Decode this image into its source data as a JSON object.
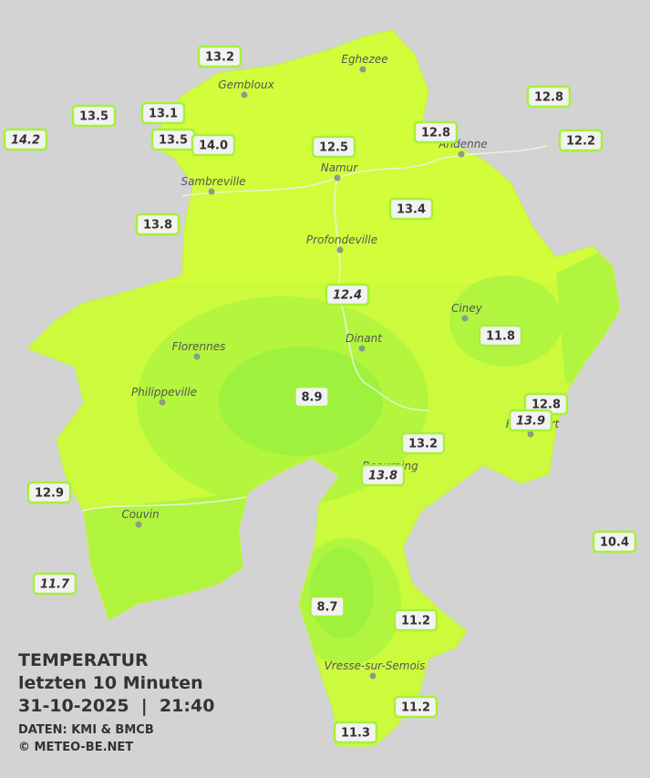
{
  "title": {
    "line1": "TEMPERATUR",
    "line2": "letzten 10 Minuten",
    "line3": "31-10-2025  |  21:40",
    "source": "DATEN: KMI & BMCB",
    "copyright": "© METEO-BE.NET"
  },
  "towns": [
    "Eghezee",
    "Gembloux",
    "Andenne",
    "Namur",
    "Sambreville",
    "Profondeville",
    "Ciney",
    "Dinant",
    "Florennes",
    "Philippeville",
    "Rochefort",
    "Beauraing",
    "Couvin",
    "Vresse-sur-Semois"
  ],
  "stations": [
    {
      "value": "13.2"
    },
    {
      "value": "13.5"
    },
    {
      "value": "13.1"
    },
    {
      "value": "14.2"
    },
    {
      "value": "13.5"
    },
    {
      "value": "14.0"
    },
    {
      "value": "12.5"
    },
    {
      "value": "12.8"
    },
    {
      "value": "12.8"
    },
    {
      "value": "12.2"
    },
    {
      "value": "13.8"
    },
    {
      "value": "13.4"
    },
    {
      "value": "12.4"
    },
    {
      "value": "11.8"
    },
    {
      "value": "8.9"
    },
    {
      "value": "12.8"
    },
    {
      "value": "13.9"
    },
    {
      "value": "13.2"
    },
    {
      "value": "13.8"
    },
    {
      "value": "12.9"
    },
    {
      "value": "10.4"
    },
    {
      "value": "11.7"
    },
    {
      "value": "8.7"
    },
    {
      "value": "11.2"
    },
    {
      "value": "11.2"
    },
    {
      "value": "11.3"
    }
  ]
}
